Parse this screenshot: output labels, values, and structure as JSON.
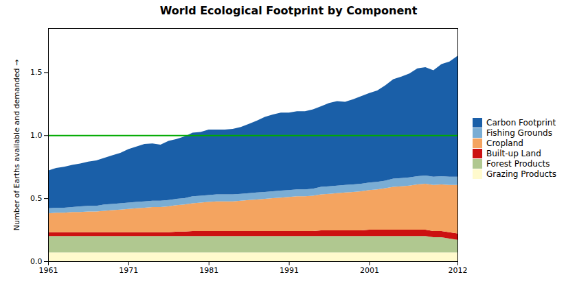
{
  "chart_data": {
    "type": "area",
    "stacked": true,
    "title": "World Ecological Footprint by Component",
    "ylabel": "Number of Earths available and demanded",
    "x": [
      1961,
      1962,
      1963,
      1964,
      1965,
      1966,
      1967,
      1968,
      1969,
      1970,
      1971,
      1972,
      1973,
      1974,
      1975,
      1976,
      1977,
      1978,
      1979,
      1980,
      1981,
      1982,
      1983,
      1984,
      1985,
      1986,
      1987,
      1988,
      1989,
      1990,
      1991,
      1992,
      1993,
      1994,
      1995,
      1996,
      1997,
      1998,
      1999,
      2000,
      2001,
      2002,
      2003,
      2004,
      2005,
      2006,
      2007,
      2008,
      2009,
      2010,
      2011,
      2012
    ],
    "series": [
      {
        "name": "Grazing Products",
        "color": "#fffacd",
        "values": [
          0.07,
          0.07,
          0.07,
          0.07,
          0.07,
          0.07,
          0.07,
          0.07,
          0.07,
          0.07,
          0.07,
          0.07,
          0.07,
          0.07,
          0.07,
          0.07,
          0.07,
          0.07,
          0.07,
          0.07,
          0.07,
          0.07,
          0.07,
          0.07,
          0.07,
          0.07,
          0.07,
          0.07,
          0.07,
          0.07,
          0.07,
          0.07,
          0.07,
          0.07,
          0.07,
          0.07,
          0.07,
          0.07,
          0.07,
          0.07,
          0.07,
          0.07,
          0.07,
          0.07,
          0.07,
          0.07,
          0.07,
          0.07,
          0.07,
          0.07,
          0.07,
          0.07
        ]
      },
      {
        "name": "Forest Products",
        "color": "#b0c890",
        "values": [
          0.13,
          0.13,
          0.13,
          0.13,
          0.13,
          0.13,
          0.13,
          0.13,
          0.13,
          0.13,
          0.13,
          0.13,
          0.13,
          0.13,
          0.13,
          0.13,
          0.13,
          0.13,
          0.13,
          0.13,
          0.13,
          0.13,
          0.13,
          0.13,
          0.13,
          0.13,
          0.13,
          0.13,
          0.13,
          0.13,
          0.13,
          0.13,
          0.13,
          0.13,
          0.13,
          0.13,
          0.13,
          0.13,
          0.13,
          0.13,
          0.13,
          0.13,
          0.13,
          0.13,
          0.13,
          0.13,
          0.13,
          0.13,
          0.12,
          0.12,
          0.11,
          0.1
        ]
      },
      {
        "name": "Built-up Land",
        "color": "#cc1111",
        "values": [
          0.03,
          0.03,
          0.03,
          0.03,
          0.03,
          0.03,
          0.03,
          0.03,
          0.03,
          0.03,
          0.03,
          0.03,
          0.03,
          0.03,
          0.03,
          0.03,
          0.035,
          0.035,
          0.04,
          0.04,
          0.04,
          0.04,
          0.04,
          0.04,
          0.04,
          0.04,
          0.04,
          0.04,
          0.04,
          0.04,
          0.04,
          0.04,
          0.04,
          0.04,
          0.045,
          0.045,
          0.045,
          0.045,
          0.045,
          0.045,
          0.05,
          0.05,
          0.05,
          0.05,
          0.05,
          0.05,
          0.05,
          0.05,
          0.05,
          0.05,
          0.05,
          0.05
        ]
      },
      {
        "name": "Cropland",
        "color": "#f4a460",
        "values": [
          0.15,
          0.155,
          0.155,
          0.16,
          0.16,
          0.165,
          0.165,
          0.17,
          0.175,
          0.18,
          0.185,
          0.19,
          0.195,
          0.2,
          0.2,
          0.205,
          0.21,
          0.215,
          0.22,
          0.225,
          0.23,
          0.235,
          0.235,
          0.235,
          0.24,
          0.245,
          0.25,
          0.255,
          0.26,
          0.265,
          0.27,
          0.275,
          0.275,
          0.28,
          0.285,
          0.29,
          0.295,
          0.3,
          0.305,
          0.31,
          0.315,
          0.32,
          0.33,
          0.34,
          0.345,
          0.35,
          0.36,
          0.365,
          0.365,
          0.37,
          0.375,
          0.385
        ]
      },
      {
        "name": "Fishing Grounds",
        "color": "#7aadd4",
        "values": [
          0.04,
          0.04,
          0.04,
          0.04,
          0.045,
          0.045,
          0.045,
          0.05,
          0.05,
          0.05,
          0.05,
          0.05,
          0.05,
          0.05,
          0.05,
          0.05,
          0.05,
          0.05,
          0.055,
          0.055,
          0.055,
          0.055,
          0.055,
          0.055,
          0.055,
          0.055,
          0.055,
          0.055,
          0.055,
          0.055,
          0.055,
          0.055,
          0.055,
          0.055,
          0.06,
          0.06,
          0.06,
          0.06,
          0.06,
          0.06,
          0.06,
          0.06,
          0.06,
          0.065,
          0.065,
          0.065,
          0.065,
          0.065,
          0.065,
          0.065,
          0.065,
          0.065
        ]
      },
      {
        "name": "Carbon Footprint",
        "color": "#1a5fa8",
        "values": [
          0.3,
          0.315,
          0.325,
          0.335,
          0.34,
          0.35,
          0.36,
          0.37,
          0.385,
          0.4,
          0.425,
          0.44,
          0.455,
          0.455,
          0.445,
          0.47,
          0.475,
          0.49,
          0.505,
          0.505,
          0.52,
          0.515,
          0.515,
          0.52,
          0.53,
          0.55,
          0.57,
          0.595,
          0.61,
          0.62,
          0.615,
          0.62,
          0.62,
          0.63,
          0.64,
          0.66,
          0.67,
          0.66,
          0.675,
          0.695,
          0.71,
          0.725,
          0.755,
          0.79,
          0.805,
          0.825,
          0.855,
          0.86,
          0.845,
          0.89,
          0.915,
          0.96
        ]
      }
    ],
    "reference_line": {
      "y": 1.0,
      "color": "#00aa00"
    },
    "xlim": [
      1961,
      2012
    ],
    "xticks": [
      1961,
      1971,
      1981,
      1991,
      2001,
      2012
    ],
    "ylim": [
      0,
      1.85
    ],
    "yticks": [
      {
        "value": 0,
        "label": "0.0"
      },
      0.5,
      {
        "value": 1.0,
        "label": "1.0"
      },
      1.5
    ],
    "grid": false,
    "legend": "right"
  }
}
